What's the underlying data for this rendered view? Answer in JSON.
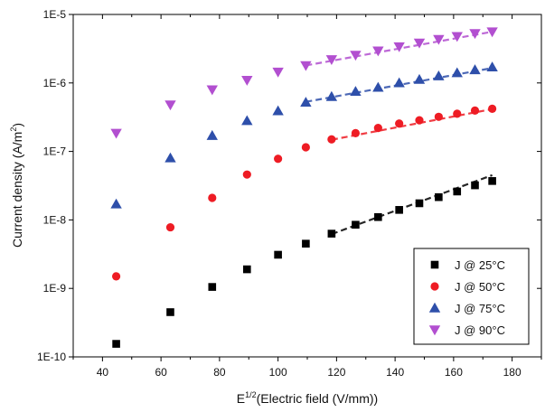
{
  "chart_data": {
    "type": "scatter",
    "xlabel_main": "E",
    "xlabel_sup": "1/2",
    "xlabel_rest": "(Electric field  (V/mm))",
    "ylabel_main": "Current density (A/m",
    "ylabel_sup": "2",
    "ylabel_end": ")",
    "xlim": [
      30,
      190
    ],
    "ylim": [
      1e-10,
      1e-05
    ],
    "yscale": "log",
    "xticks": [
      40,
      60,
      80,
      100,
      120,
      140,
      160,
      180
    ],
    "xtick_labels": [
      "40",
      "60",
      "80",
      "100",
      "120",
      "140",
      "160",
      "180"
    ],
    "yticks": [
      1e-10,
      1e-09,
      1e-08,
      1e-07,
      1e-06,
      1e-05
    ],
    "ytick_labels": [
      "1E-10",
      "1E-9",
      "1E-8",
      "1E-7",
      "1E-6",
      "1E-5"
    ],
    "grid": false,
    "legend_position": "bottom-right",
    "x": [
      44.7,
      63.2,
      77.5,
      89.4,
      100.0,
      109.5,
      118.3,
      126.5,
      134.2,
      141.4,
      148.3,
      154.9,
      161.2,
      167.3,
      173.2
    ],
    "series": [
      {
        "name": "J @ 25°C",
        "marker": "square",
        "color": "#000000",
        "values": [
          1.55e-10,
          4.5e-10,
          1.05e-09,
          1.9e-09,
          3.1e-09,
          4.5e-09,
          6.3e-09,
          8.5e-09,
          1.1e-08,
          1.4e-08,
          1.75e-08,
          2.15e-08,
          2.6e-08,
          3.2e-08,
          3.7e-08
        ],
        "fit": {
          "x": [
            118.3,
            173.2
          ],
          "y": [
            6.2e-09,
            4.5e-08
          ]
        }
      },
      {
        "name": "J @ 50°C",
        "marker": "circle",
        "color": "#ee1c24",
        "values": [
          1.5e-09,
          7.8e-09,
          2.1e-08,
          4.6e-08,
          7.8e-08,
          1.15e-07,
          1.5e-07,
          1.85e-07,
          2.2e-07,
          2.55e-07,
          2.85e-07,
          3.2e-07,
          3.55e-07,
          3.95e-07,
          4.2e-07
        ],
        "fit": {
          "x": [
            118.3,
            173.2
          ],
          "y": [
            1.48e-07,
            4.15e-07
          ]
        }
      },
      {
        "name": "J @ 75°C",
        "marker": "triangle-up",
        "color": "#2e4faa",
        "values": [
          1.7e-08,
          8e-08,
          1.7e-07,
          2.8e-07,
          3.9e-07,
          5.2e-07,
          6.3e-07,
          7.5e-07,
          8.6e-07,
          1e-06,
          1.12e-06,
          1.26e-06,
          1.4e-06,
          1.55e-06,
          1.7e-06
        ],
        "fit": {
          "x": [
            109.5,
            173.2
          ],
          "y": [
            5.3e-07,
            1.65e-06
          ]
        }
      },
      {
        "name": "J @ 90°C",
        "marker": "triangle-down",
        "color": "#b24fd0",
        "values": [
          1.85e-07,
          4.8e-07,
          8e-07,
          1.1e-06,
          1.45e-06,
          1.8e-06,
          2.2e-06,
          2.55e-06,
          2.95e-06,
          3.4e-06,
          3.85e-06,
          4.35e-06,
          4.8e-06,
          5.3e-06,
          5.6e-06
        ],
        "fit": {
          "x": [
            109.5,
            173.2
          ],
          "y": [
            1.8e-06,
            5.6e-06
          ]
        }
      }
    ]
  }
}
